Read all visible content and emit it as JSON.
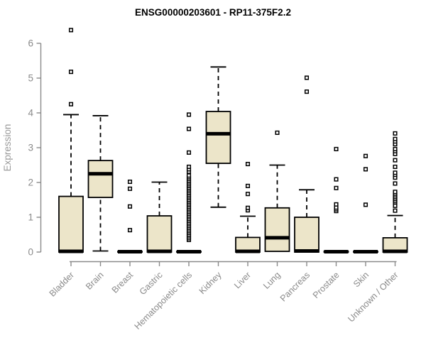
{
  "title": "ENSG00000203601 - RP11-375F2.2",
  "chart_data": {
    "type": "boxplot",
    "title": "ENSG00000203601 - RP11-375F2.2",
    "ylabel": "Expression",
    "xlabel": "",
    "ylim": [
      0,
      6.5
    ],
    "yticks": [
      "0",
      "1",
      "2",
      "3",
      "4",
      "5",
      "6"
    ],
    "grid": false,
    "legend": "none",
    "colors": {
      "box_fill": "#ECE5C9",
      "box_stroke": "#000000",
      "median": "#000000",
      "whisker": "#000000",
      "outlier_stroke": "#000000",
      "outlier_fill": "#ffffff",
      "axis": "#8a8a8a",
      "tick_label": "#8a8a8a",
      "title": "#000000",
      "ylabel": "#9a9a9a",
      "background": "#ffffff"
    },
    "categories": [
      "Bladder",
      "Brain",
      "Breast",
      "Gastric",
      "Hematopoietic cells",
      "Kidney",
      "Liver",
      "Lung",
      "Pancreas",
      "Prostate",
      "Skin",
      "Unknown / Other"
    ],
    "series": [
      {
        "name": "Bladder",
        "whislo": 0,
        "q1": 0,
        "med": 0.02,
        "q3": 1.6,
        "whishi": 3.95,
        "outliers": [
          4.25,
          5.18,
          6.38
        ]
      },
      {
        "name": "Brain",
        "whislo": 0.03,
        "q1": 1.57,
        "med": 2.25,
        "q3": 2.63,
        "whishi": 3.92,
        "outliers": []
      },
      {
        "name": "Breast",
        "whislo": 0,
        "q1": 0,
        "med": 0.01,
        "q3": 0.02,
        "whishi": 0.02,
        "outliers": [
          0.63,
          1.31,
          1.82,
          2.02
        ]
      },
      {
        "name": "Gastric",
        "whislo": 0,
        "q1": 0,
        "med": 0.02,
        "q3": 1.04,
        "whishi": 2.01,
        "outliers": []
      },
      {
        "name": "Hematopoietic cells",
        "whislo": 0,
        "q1": 0,
        "med": 0.01,
        "q3": 0.02,
        "whishi": 0.02,
        "outliers": [
          0.35,
          0.4,
          0.45,
          0.5,
          0.55,
          0.6,
          0.65,
          0.7,
          0.75,
          0.8,
          0.85,
          0.9,
          0.95,
          1.0,
          1.05,
          1.1,
          1.15,
          1.2,
          1.25,
          1.3,
          1.35,
          1.4,
          1.45,
          1.5,
          1.55,
          1.6,
          1.65,
          1.7,
          1.75,
          1.8,
          1.85,
          1.9,
          1.95,
          2.0,
          2.05,
          2.1,
          2.15,
          2.2,
          2.31,
          2.38,
          2.45,
          2.86,
          3.54,
          3.95
        ]
      },
      {
        "name": "Kidney",
        "whislo": 1.29,
        "q1": 2.55,
        "med": 3.4,
        "q3": 4.04,
        "whishi": 5.32,
        "outliers": []
      },
      {
        "name": "Liver",
        "whislo": 0,
        "q1": 0,
        "med": 0.02,
        "q3": 0.42,
        "whishi": 1.03,
        "outliers": [
          1.2,
          1.27,
          1.67,
          1.9,
          2.53
        ]
      },
      {
        "name": "Lung",
        "whislo": 0,
        "q1": 0.02,
        "med": 0.41,
        "q3": 1.27,
        "whishi": 2.5,
        "outliers": [
          3.43
        ]
      },
      {
        "name": "Pancreas",
        "whislo": 0,
        "q1": 0,
        "med": 0.03,
        "q3": 1.0,
        "whishi": 1.79,
        "outliers": [
          4.61,
          5.01
        ]
      },
      {
        "name": "Prostate",
        "whislo": 0,
        "q1": 0,
        "med": 0.01,
        "q3": 0.02,
        "whishi": 0.02,
        "outliers": [
          1.18,
          1.23,
          1.28,
          1.37,
          1.84,
          2.09,
          2.96
        ]
      },
      {
        "name": "Skin",
        "whislo": 0,
        "q1": 0,
        "med": 0.01,
        "q3": 0.02,
        "whishi": 0.02,
        "outliers": [
          1.36,
          2.38,
          2.76
        ]
      },
      {
        "name": "Unknown / Other",
        "whislo": 0,
        "q1": 0,
        "med": 0.02,
        "q3": 0.41,
        "whishi": 1.05,
        "outliers": [
          1.19,
          1.33,
          1.43,
          1.48,
          1.53,
          1.58,
          1.63,
          1.68,
          1.73,
          1.97,
          2.14,
          2.22,
          2.28,
          2.45,
          2.64,
          2.82,
          2.9,
          2.96,
          3.1,
          3.18,
          3.25,
          3.41
        ]
      }
    ]
  }
}
